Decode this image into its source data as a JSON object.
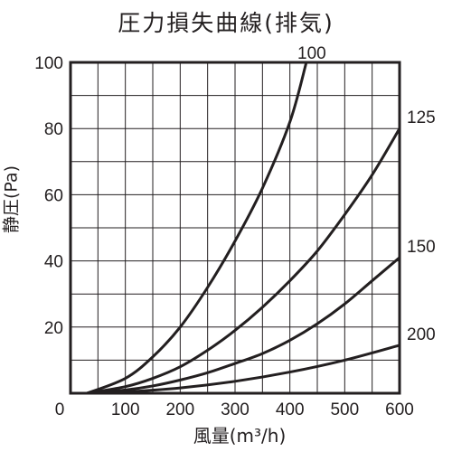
{
  "chart_data": {
    "type": "line",
    "title": "圧力損失曲線(排気)",
    "xlabel": "風量(m³/h)",
    "ylabel": "静圧(Pa)",
    "xlim": [
      0,
      600
    ],
    "ylim": [
      0,
      100
    ],
    "x_ticks": [
      0,
      100,
      200,
      300,
      400,
      500,
      600
    ],
    "y_ticks": [
      0,
      20,
      40,
      60,
      80,
      100
    ],
    "grid": true,
    "series": [
      {
        "name": "100",
        "x": [
          30,
          100,
          150,
          200,
          250,
          300,
          350,
          400,
          430
        ],
        "y": [
          0,
          4.5,
          11,
          20,
          32,
          46,
          62,
          82,
          100
        ]
      },
      {
        "name": "125",
        "x": [
          30,
          100,
          150,
          200,
          250,
          300,
          350,
          400,
          450,
          500,
          550,
          600
        ],
        "y": [
          0,
          2,
          4.5,
          8,
          13,
          19,
          26,
          34,
          43,
          54,
          66,
          80
        ]
      },
      {
        "name": "150",
        "x": [
          30,
          100,
          150,
          200,
          250,
          300,
          350,
          400,
          450,
          500,
          550,
          600
        ],
        "y": [
          0,
          1,
          2.2,
          4,
          6.2,
          9,
          12,
          16,
          21,
          27,
          34,
          41
        ]
      },
      {
        "name": "200",
        "x": [
          30,
          100,
          200,
          300,
          400,
          500,
          600
        ],
        "y": [
          0,
          0.4,
          1.6,
          3.6,
          6.4,
          10,
          14.5
        ]
      }
    ]
  }
}
